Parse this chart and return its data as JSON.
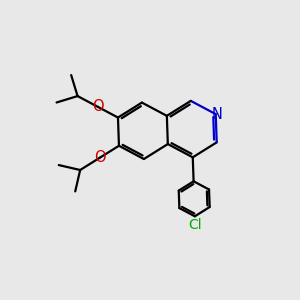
{
  "bg_color": "#e8e8e8",
  "bond_color": "#000000",
  "N_color": "#0000cc",
  "O_color": "#cc0000",
  "Cl_color": "#00aa00",
  "line_width": 1.6,
  "font_size": 10.5,
  "xlim": [
    0,
    10
  ],
  "ylim": [
    0,
    10
  ]
}
